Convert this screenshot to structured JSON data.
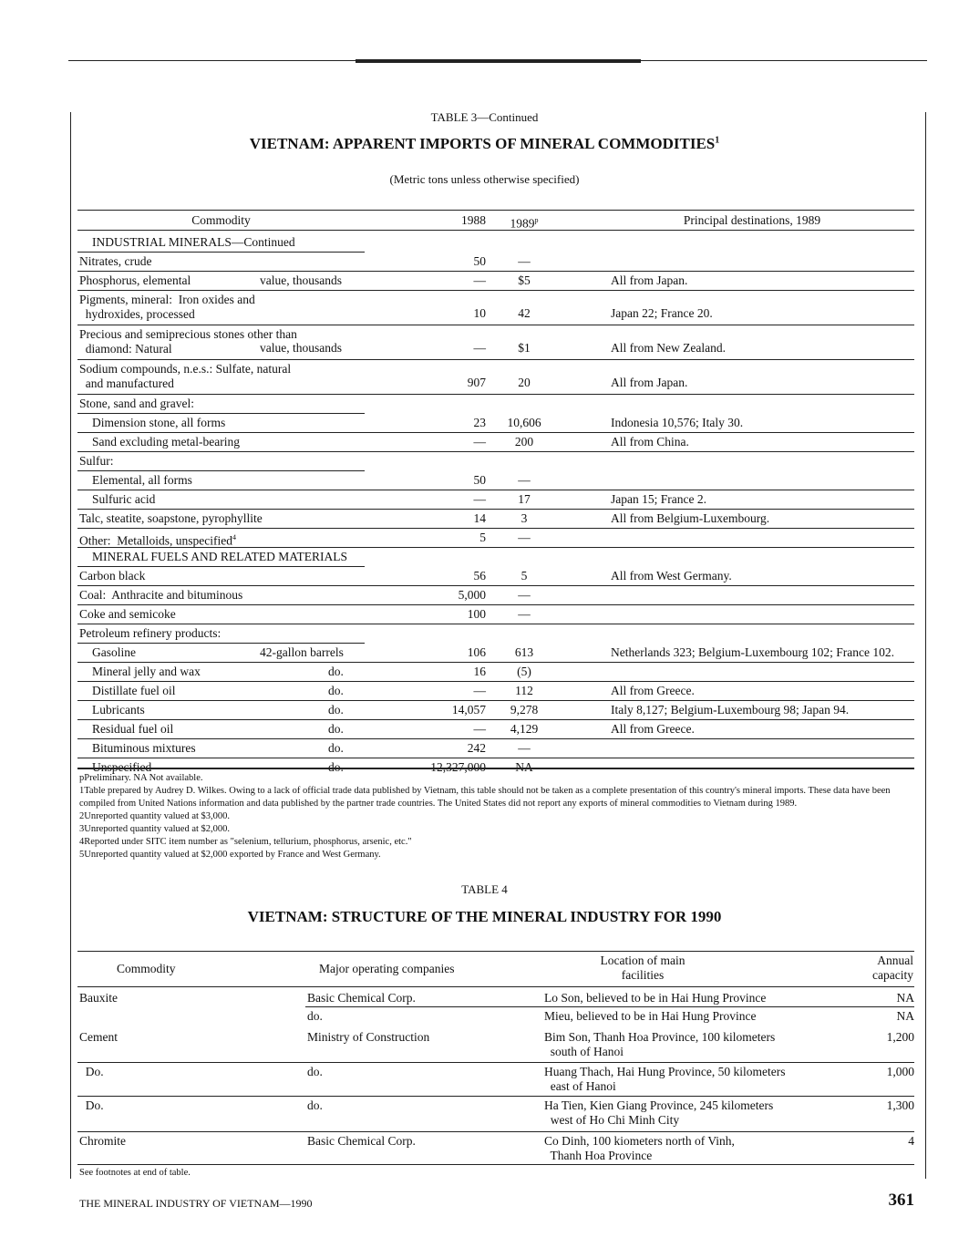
{
  "table3": {
    "label": "TABLE 3—Continued",
    "title": "VIETNAM: APPARENT IMPORTS OF MINERAL COMMODITIES",
    "title_sup": "1",
    "subtitle": "(Metric tons unless otherwise specified)",
    "headers": {
      "commodity": "Commodity",
      "y1988": "1988",
      "y1989": "1989",
      "y1989_sup": "p",
      "dest": "Principal destinations, 1989"
    },
    "rows": [
      {
        "label": "INDUSTRIAL MINERALS—Continued",
        "indent": 1,
        "rule": "partial"
      },
      {
        "label": "Nitrates, crude",
        "y1988": "50",
        "y1989": "—"
      },
      {
        "label": "Phosphorus, elemental",
        "unit": "value, thousands",
        "y1988": "—",
        "y1989": "$5",
        "dest": "All from Japan."
      },
      {
        "label": "Pigments, mineral:  Iron oxides and\n  hydroxides, processed",
        "y1988": "10",
        "y1989": "42",
        "dest": "Japan 22; France 20."
      },
      {
        "label": "Precious and semiprecious stones other than\n  diamond: Natural",
        "unit": "value, thousands",
        "y1988": "—",
        "y1989": "$1",
        "dest": "All from New Zealand."
      },
      {
        "label": "Sodium compounds, n.e.s.: Sulfate, natural\n  and manufactured",
        "y1988": "907",
        "y1989": "20",
        "dest": "All from Japan."
      },
      {
        "label": "Stone, sand and gravel:",
        "rule": "partial"
      },
      {
        "label": "Dimension stone, all forms",
        "indent": 1,
        "y1988": "23",
        "y1989": "10,606",
        "dest": "Indonesia 10,576; Italy 30."
      },
      {
        "label": "Sand excluding metal-bearing",
        "indent": 1,
        "y1988": "—",
        "y1989": "200",
        "dest": "All from China."
      },
      {
        "label": "Sulfur:",
        "rule": "partial"
      },
      {
        "label": "Elemental, all forms",
        "indent": 1,
        "y1988": "50",
        "y1989": "—"
      },
      {
        "label": "Sulfuric acid",
        "indent": 1,
        "y1988": "—",
        "y1989": "17",
        "dest": "Japan 15; France 2."
      },
      {
        "label": "Talc, steatite, soapstone, pyrophyllite",
        "y1988": "14",
        "y1989": "3",
        "dest": "All from Belgium-Luxembourg."
      },
      {
        "label": "Other:  Metalloids, unspecified",
        "sup": "4",
        "y1988": "5",
        "y1989": "—"
      },
      {
        "label": "MINERAL FUELS AND RELATED MATERIALS",
        "indent": 1,
        "rule": "partial"
      },
      {
        "label": "Carbon black",
        "y1988": "56",
        "y1989": "5",
        "dest": "All from West Germany."
      },
      {
        "label": "Coal:  Anthracite and bituminous",
        "y1988": "5,000",
        "y1989": "—"
      },
      {
        "label": "Coke and semicoke",
        "y1988": "100",
        "y1989": "—"
      },
      {
        "label": "Petroleum refinery products:",
        "rule": "partial"
      },
      {
        "label": "Gasoline",
        "indent": 1,
        "unit": "42-gallon barrels",
        "y1988": "106",
        "y1989": "613",
        "dest": "Netherlands 323; Belgium-Luxembourg 102; France 102."
      },
      {
        "label": "Mineral jelly and wax",
        "indent": 1,
        "unit": "do.",
        "y1988": "16",
        "y1989": "(5)"
      },
      {
        "label": "Distillate fuel oil",
        "indent": 1,
        "unit": "do.",
        "y1988": "—",
        "y1989": "112",
        "dest": "All from Greece."
      },
      {
        "label": "Lubricants",
        "indent": 1,
        "unit": "do.",
        "y1988": "14,057",
        "y1989": "9,278",
        "dest": "Italy 8,127; Belgium-Luxembourg 98; Japan 94."
      },
      {
        "label": "Residual fuel oil",
        "indent": 1,
        "unit": "do.",
        "y1988": "—",
        "y1989": "4,129",
        "dest": "All from Greece."
      },
      {
        "label": "Bituminous mixtures",
        "indent": 1,
        "unit": "do.",
        "y1988": "242",
        "y1989": "—"
      },
      {
        "label": "Unspecified",
        "indent": 1,
        "unit": "do.",
        "y1988": "12,327,000",
        "y1989": "NA"
      }
    ],
    "footnotes": [
      "pPreliminary. NA Not available.",
      "1Table prepared by Audrey D. Wilkes.  Owing to a lack of official trade data published by Vietnam, this table should not be taken as a complete presentation of this country's mineral imports.  These data have been",
      "compiled from United Nations information and data published by the partner trade countries.  The United States did not report any exports of mineral commodities to Vietnam during 1989.",
      "2Unreported quantity valued at $3,000.",
      "3Unreported quantity valued at $2,000.",
      "4Reported under SITC item number as \"selenium, tellurium, phosphorus, arsenic, etc.\"",
      "5Unreported quantity valued at $2,000 exported by France and West Germany."
    ]
  },
  "table4": {
    "label": "TABLE 4",
    "title": "VIETNAM: STRUCTURE OF THE MINERAL INDUSTRY FOR 1990",
    "headers": {
      "commodity": "Commodity",
      "companies": "Major operating companies",
      "location": "Location of main\nfacilities",
      "capacity": "Annual\ncapacity"
    },
    "rows": [
      {
        "commodity": "Bauxite",
        "company": "Basic Chemical Corp.",
        "location": "Lo Son, believed to be in Hai Hung Province",
        "capacity": "NA"
      },
      {
        "commodity": "",
        "company": "do.",
        "location": "Mieu, believed to be in Hai Hung Province",
        "capacity": "NA"
      },
      {
        "commodity": "Cement",
        "company": "Ministry of Construction",
        "location": "Bim Son, Thanh Hoa Province, 100 kilometers\n  south of Hanoi",
        "capacity": "1,200"
      },
      {
        "commodity": "  Do.",
        "company": "do.",
        "location": "Huang Thach, Hai Hung Province, 50 kilometers\n  east of Hanoi",
        "capacity": "1,000"
      },
      {
        "commodity": "  Do.",
        "company": "do.",
        "location": "Ha Tien, Kien Giang Province, 245 kilometers\n  west of Ho Chi Minh City",
        "capacity": "1,300"
      },
      {
        "commodity": "Chromite",
        "company": "Basic Chemical Corp.",
        "location": "Co Dinh, 100 kiometers north of Vinh,\n  Thanh Hoa Province",
        "capacity": "4"
      }
    ],
    "footnote": "See footnotes at end of table."
  },
  "footer": {
    "running_title": "THE MINERAL INDUSTRY OF VIETNAM—1990",
    "page_number": "361"
  }
}
